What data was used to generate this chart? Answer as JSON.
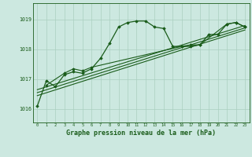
{
  "background_color": "#cce8e0",
  "grid_color": "#aacfbf",
  "line_color": "#1a5c1a",
  "xlabel": "Graphe pression niveau de la mer (hPa)",
  "xlabel_fontsize": 6.0,
  "ylabel_ticks": [
    1016,
    1017,
    1018,
    1019
  ],
  "xlim": [
    -0.5,
    23.5
  ],
  "ylim": [
    1015.55,
    1019.55
  ],
  "series": [
    {
      "x": [
        0,
        1,
        2,
        3,
        4,
        5,
        6,
        7,
        8,
        9,
        10,
        11,
        12,
        13,
        14,
        15,
        16,
        17,
        18,
        19,
        20,
        21,
        22,
        23
      ],
      "y": [
        1016.1,
        1016.95,
        1016.75,
        1017.15,
        1017.25,
        1017.2,
        1017.35,
        1017.7,
        1018.2,
        1018.75,
        1018.9,
        1018.95,
        1018.95,
        1018.75,
        1018.7,
        1018.1,
        1018.1,
        1018.15,
        1018.15,
        1018.5,
        1018.5,
        1018.85,
        1018.9,
        1018.75
      ],
      "marker": "D",
      "markersize": 1.8,
      "linewidth": 0.9
    },
    {
      "x": [
        1,
        3,
        4,
        5,
        6,
        16,
        17,
        18,
        21,
        22,
        23
      ],
      "y": [
        1016.8,
        1017.2,
        1017.35,
        1017.28,
        1017.4,
        1018.1,
        1018.1,
        1018.15,
        1018.85,
        1018.9,
        1018.75
      ],
      "marker": "D",
      "markersize": 1.8,
      "linewidth": 0.8
    },
    {
      "x": [
        0,
        23
      ],
      "y": [
        1016.45,
        1018.65
      ],
      "marker": null,
      "markersize": 0,
      "linewidth": 0.8
    },
    {
      "x": [
        0,
        23
      ],
      "y": [
        1016.55,
        1018.72
      ],
      "marker": null,
      "markersize": 0,
      "linewidth": 0.8
    },
    {
      "x": [
        0,
        23
      ],
      "y": [
        1016.65,
        1018.8
      ],
      "marker": null,
      "markersize": 0,
      "linewidth": 0.8
    }
  ]
}
